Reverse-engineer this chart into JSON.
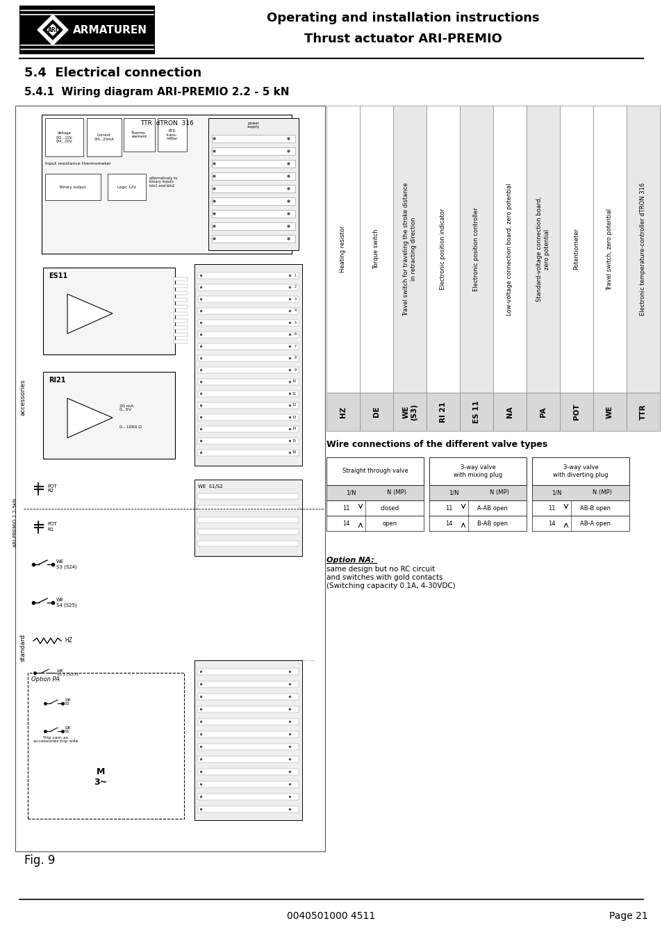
{
  "title_line1": "Operating and installation instructions",
  "title_line2": "Thrust actuator ARI-PREMIO",
  "section_title": "5.4  Electrical connection",
  "subsection_title": "5.4.1  Wiring diagram ARI-PREMIO 2.2 - 5 kN",
  "footer_center": "0040501000 4511",
  "footer_right": "Page 21",
  "fig_label": "Fig. 9",
  "logo_text": "ARI",
  "logo_brand": "ARMATUREN",
  "bg_color": "#ffffff",
  "text_color": "#000000",
  "legend_cols": [
    {
      "code": "HZ",
      "shade": false,
      "desc": "Heating resistor"
    },
    {
      "code": "DE",
      "shade": false,
      "desc": "Torque switch"
    },
    {
      "code": "WE\n(S3)",
      "shade": true,
      "desc": "Travel switch for traveling the stroke distance\nin retracting direction"
    },
    {
      "code": "RI 21",
      "shade": false,
      "desc": "Electronic position indicator"
    },
    {
      "code": "ES 11",
      "shade": true,
      "desc": "Electronic position controller"
    },
    {
      "code": "NA",
      "shade": false,
      "desc": "Low-voltage connection board, zero potential"
    },
    {
      "code": "PA",
      "shade": true,
      "desc": "Standard-voltage connection board,\nzero potential"
    },
    {
      "code": "POT",
      "shade": false,
      "desc": "Potentiometer"
    },
    {
      "code": "WE",
      "shade": false,
      "desc": "Travel switch, zero potential"
    },
    {
      "code": "TTR",
      "shade": true,
      "desc": "Electronic temperature-controller dTRON 316"
    }
  ],
  "wire_table_title": "Wire connections of the different valve types",
  "wire_cols": [
    {
      "title": "Straight through valve",
      "rows": [
        [
          "1/N",
          "N (MP)"
        ],
        [
          "11",
          "closed"
        ],
        [
          "14",
          "open"
        ]
      ]
    },
    {
      "title": "3-way valve\nwith mixing plug",
      "rows": [
        [
          "1/N",
          "N (MP)"
        ],
        [
          "11",
          "A-AB open"
        ],
        [
          "14",
          "B-AB open"
        ]
      ]
    },
    {
      "title": "3-way valve\nwith diverting plug",
      "rows": [
        [
          "1/N",
          "N (MP)"
        ],
        [
          "11",
          "AB-B open"
        ],
        [
          "14",
          "AB-A open"
        ]
      ]
    }
  ],
  "option_title": "Option NA:",
  "option_text": "same design but no RC circuit\nand switches with gold contacts\n(Switching capacity 0.1A, 4-30VDC)"
}
